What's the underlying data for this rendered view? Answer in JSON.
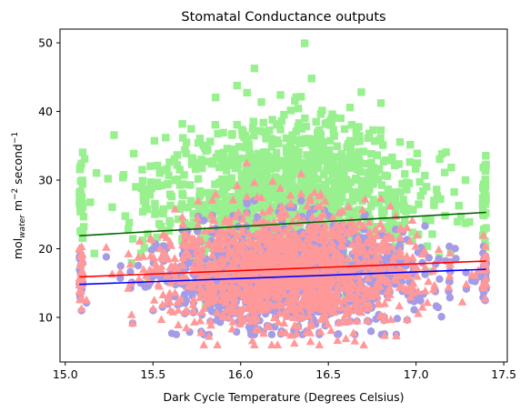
{
  "chart_data": {
    "type": "scatter",
    "title": "Stomatal Conductance outputs",
    "xlabel": "Dark Cycle Temperature (Degrees Celsius)",
    "ylabel": {
      "base": "mol",
      "sub": "water",
      "mid": " m",
      "sup1": "−2",
      "mid2": " second",
      "sup2": "−1"
    },
    "xlim": [
      14.97,
      17.52
    ],
    "ylim": [
      3.5,
      52
    ],
    "xticks": [
      15.0,
      15.5,
      16.0,
      16.5,
      17.0,
      17.5
    ],
    "xtick_labels": [
      "15.0",
      "15.5",
      "16.0",
      "16.5",
      "17.0",
      "17.5"
    ],
    "yticks": [
      10,
      20,
      30,
      40,
      50
    ],
    "ytick_labels": [
      "10",
      "20",
      "30",
      "40",
      "50"
    ],
    "grid": false,
    "legend": "none",
    "series": [
      {
        "marker": "square",
        "color": "#98f08f",
        "cloud": {
          "x_range": [
            15.08,
            17.4
          ],
          "center": [
            16.25,
            27
          ],
          "spread_y": 11,
          "y_min": 12,
          "y_max": 50
        }
      },
      {
        "marker": "circle",
        "color": "#a59be6",
        "cloud": {
          "x_range": [
            15.08,
            17.4
          ],
          "center": [
            16.25,
            16
          ],
          "spread_y": 7,
          "y_min": 7.5,
          "y_max": 27
        }
      },
      {
        "marker": "triangle",
        "color": "#ff9999",
        "cloud": {
          "x_range": [
            15.08,
            17.4
          ],
          "center": [
            16.25,
            17
          ],
          "spread_y": 8,
          "y_min": 6,
          "y_max": 33
        }
      }
    ],
    "fit_lines": [
      {
        "color": "#006400",
        "x": [
          15.08,
          17.4
        ],
        "y": [
          21.9,
          25.3
        ]
      },
      {
        "color": "#ff0000",
        "x": [
          15.08,
          17.4
        ],
        "y": [
          15.9,
          18.2
        ]
      },
      {
        "color": "#0000ff",
        "x": [
          15.08,
          17.4
        ],
        "y": [
          14.8,
          17.0
        ]
      }
    ]
  }
}
